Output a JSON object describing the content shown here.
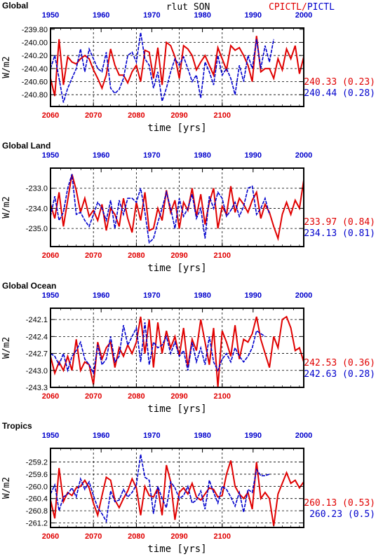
{
  "header": {
    "title": "rlut SON",
    "legend": "CPICTL/PICTL"
  },
  "colors": {
    "cpictl": "#e00000",
    "pictl": "#0000cc",
    "axis": "#000000",
    "grid": "#000000"
  },
  "chart_data": [
    {
      "type": "line",
      "panel_title": "Global",
      "ylabel": "W/m2",
      "xlabel": "time [yrs]",
      "xlim_bottom": [
        2060,
        2119
      ],
      "xticks_bottom": [
        2060,
        2070,
        2080,
        2090,
        2100
      ],
      "xlim_top": [
        1950,
        2000
      ],
      "xticks_top": [
        1950,
        1960,
        1970,
        1980,
        1990,
        2000
      ],
      "ylim": [
        -240.98,
        -239.78
      ],
      "yticks": [
        -239.8,
        -240.0,
        -240.2,
        -240.4,
        -240.6,
        -240.8
      ],
      "ytick_labels": [
        "-239.80",
        "-240.00",
        "-240.20",
        "-240.40",
        "-240.60",
        "-240.80"
      ],
      "grid_y": [
        -240.0,
        -240.2,
        -240.4,
        -240.6,
        -240.8
      ],
      "grid_x": [
        2070,
        2080,
        2090,
        2100
      ],
      "series": [
        {
          "name": "CPICTL",
          "mean_label": "240.33 (0.23)",
          "values": [
            -240.55,
            -240.82,
            -239.95,
            -240.65,
            -240.22,
            -240.3,
            -240.33,
            -240.25,
            -240.2,
            -240.25,
            -240.42,
            -240.55,
            -240.7,
            -240.5,
            -240.1,
            -240.35,
            -240.5,
            -240.5,
            -240.62,
            -240.45,
            -240.35,
            -240.6,
            -240.12,
            -240.15,
            -240.55,
            -240.08,
            -240.65,
            -240.0,
            -240.05,
            -240.22,
            -240.55,
            -240.05,
            -240.1,
            -240.2,
            -240.42,
            -240.3,
            -240.2,
            -240.35,
            -240.5,
            -240.08,
            -240.25,
            -240.42,
            -240.05,
            -240.12,
            -240.08,
            -240.2,
            -240.35,
            -240.6,
            -239.9,
            -240.45,
            -240.4,
            -240.4,
            -240.55,
            -240.25,
            -240.42,
            -240.1,
            -240.25,
            -240.05,
            -240.48,
            -240.22
          ]
        },
        {
          "name": "PICTL",
          "mean_label": "240.44 (0.28)",
          "values": [
            -240.4,
            -240.2,
            -240.55,
            -240.92,
            -240.7,
            -240.55,
            -240.4,
            -240.1,
            -240.45,
            -240.1,
            -240.25,
            -240.4,
            -240.45,
            -240.15,
            -240.7,
            -240.78,
            -240.72,
            -240.55,
            -240.2,
            -240.15,
            -240.3,
            -239.85,
            -240.25,
            -240.35,
            -240.7,
            -240.45,
            -240.9,
            -240.7,
            -240.45,
            -240.25,
            -240.35,
            -240.22,
            -240.4,
            -240.6,
            -240.5,
            -240.85,
            -240.3,
            -240.45,
            -240.65,
            -240.2,
            -240.5,
            -240.4,
            -240.55,
            -240.8,
            -240.35,
            -240.6,
            -240.2,
            -240.4,
            -239.95,
            -240.4,
            -240.05,
            -240.3,
            -239.95
          ]
        }
      ]
    },
    {
      "type": "line",
      "panel_title": "Global Land",
      "ylabel": "W/m2",
      "xlabel": "time [yrs]",
      "xlim_bottom": [
        2060,
        2119
      ],
      "xticks_bottom": [
        2060,
        2070,
        2080,
        2090,
        2100
      ],
      "xlim_top": [
        1950,
        2000
      ],
      "xticks_top": [
        1950,
        1960,
        1970,
        1980,
        1990,
        2000
      ],
      "ylim": [
        -235.9,
        -232.0
      ],
      "yticks": [
        -233.0,
        -234.0,
        -235.0
      ],
      "ytick_labels": [
        "-233.0",
        "-234.0",
        "-235.0"
      ],
      "grid_y": [
        -233.0,
        -234.0,
        -235.0
      ],
      "grid_x": [
        2070,
        2080,
        2090,
        2100
      ],
      "series": [
        {
          "name": "CPICTL",
          "mean_label": "233.97 (0.84)",
          "values": [
            -233.8,
            -234.5,
            -233.2,
            -234.9,
            -233.6,
            -232.3,
            -233.1,
            -234.2,
            -233.5,
            -234.4,
            -234.1,
            -234.6,
            -233.8,
            -235.1,
            -234.0,
            -234.3,
            -234.9,
            -233.5,
            -234.5,
            -235.2,
            -233.7,
            -234.6,
            -233.2,
            -235.1,
            -235.0,
            -234.0,
            -234.6,
            -233.1,
            -234.2,
            -233.6,
            -235.0,
            -233.7,
            -234.1,
            -233.0,
            -234.4,
            -233.3,
            -234.8,
            -233.7,
            -233.0,
            -235.0,
            -233.9,
            -234.3,
            -232.9,
            -234.2,
            -233.5,
            -233.8,
            -234.2,
            -233.6,
            -233.2,
            -234.5,
            -233.8,
            -234.2,
            -234.9,
            -235.5,
            -234.3,
            -233.7,
            -234.3,
            -233.6,
            -234.0,
            -232.6
          ]
        },
        {
          "name": "PICTL",
          "mean_label": "234.13 (0.81)",
          "values": [
            -234.4,
            -233.4,
            -234.6,
            -234.2,
            -233.0,
            -232.3,
            -234.3,
            -234.2,
            -234.6,
            -234.9,
            -234.3,
            -233.7,
            -234.0,
            -234.6,
            -233.6,
            -235.0,
            -233.6,
            -234.3,
            -233.5,
            -233.5,
            -233.7,
            -233.0,
            -234.2,
            -235.7,
            -235.5,
            -234.7,
            -234.0,
            -233.2,
            -234.0,
            -235.0,
            -233.5,
            -234.4,
            -234.0,
            -233.3,
            -234.5,
            -234.0,
            -235.5,
            -233.4,
            -234.0,
            -233.2,
            -233.5,
            -234.4,
            -234.1,
            -233.7,
            -234.4,
            -233.9,
            -233.0,
            -232.9,
            -234.3,
            -234.0,
            -233.5,
            -234.3
          ]
        }
      ]
    },
    {
      "type": "line",
      "panel_title": "Global Ocean",
      "ylabel": "W/m2",
      "xlabel": "time [yrs]",
      "xlim_bottom": [
        2060,
        2119
      ],
      "xticks_bottom": [
        2060,
        2070,
        2080,
        2090,
        2100
      ],
      "xlim_top": [
        1950,
        2000
      ],
      "xticks_top": [
        1950,
        1960,
        1970,
        1980,
        1990,
        2000
      ],
      "ylim": [
        -243.3,
        -241.9
      ],
      "yticks": [
        -242.1,
        -242.4,
        -242.7,
        -243.0,
        -243.3
      ],
      "ytick_labels": [
        "-242.1",
        "-242.4",
        "-242.7",
        "-243.0",
        "-243.3"
      ],
      "grid_y": [
        -242.1,
        -242.4,
        -242.7,
        -243.0
      ],
      "grid_x": [
        2070,
        2080,
        2090,
        2100
      ],
      "series": [
        {
          "name": "CPICTL",
          "mean_label": "242.53 (0.36)",
          "values": [
            -242.75,
            -243.05,
            -242.85,
            -243.0,
            -242.75,
            -243.0,
            -242.45,
            -243.0,
            -242.85,
            -242.9,
            -243.25,
            -242.5,
            -242.8,
            -242.6,
            -242.5,
            -242.95,
            -242.6,
            -242.75,
            -242.55,
            -242.7,
            -242.5,
            -242.05,
            -242.7,
            -242.1,
            -242.95,
            -242.15,
            -242.7,
            -242.3,
            -242.6,
            -242.4,
            -242.75,
            -242.25,
            -242.95,
            -242.45,
            -242.65,
            -242.1,
            -242.5,
            -242.9,
            -242.25,
            -243.3,
            -242.3,
            -242.5,
            -242.75,
            -242.2,
            -242.8,
            -242.45,
            -242.5,
            -242.35,
            -242.05,
            -242.45,
            -242.7,
            -242.95,
            -242.4,
            -242.6,
            -242.1,
            -242.05,
            -242.25,
            -242.65,
            -242.6,
            -242.85
          ]
        },
        {
          "name": "PICTL",
          "mean_label": "242.63 (0.28)",
          "values": [
            -242.7,
            -242.75,
            -242.9,
            -242.7,
            -243.0,
            -242.75,
            -242.65,
            -242.5,
            -242.8,
            -242.9,
            -243.05,
            -242.55,
            -242.9,
            -242.8,
            -242.4,
            -242.85,
            -242.75,
            -242.2,
            -242.55,
            -242.4,
            -242.25,
            -242.85,
            -242.15,
            -242.9,
            -242.5,
            -242.6,
            -242.55,
            -242.4,
            -242.7,
            -242.5,
            -242.75,
            -242.65,
            -243.0,
            -242.5,
            -242.85,
            -242.6,
            -242.9,
            -242.4,
            -242.85,
            -243.0,
            -242.8,
            -242.7,
            -242.85,
            -242.6,
            -242.75,
            -242.85,
            -242.75,
            -242.6,
            -242.3,
            -242.35,
            -242.4
          ]
        }
      ]
    },
    {
      "type": "line",
      "panel_title": "Tropics",
      "ylabel": "W/m2",
      "xlabel": "time [yrs]",
      "xlim_bottom": [
        2060,
        2119
      ],
      "xticks_bottom": [
        2060,
        2070,
        2080,
        2090,
        2100
      ],
      "xlim_top": [
        1950,
        2000
      ],
      "xticks_top": [
        1950,
        1960,
        1970,
        1980,
        1990,
        2000
      ],
      "ylim": [
        -261.35,
        -258.75
      ],
      "yticks": [
        -259.2,
        -259.6,
        -260.0,
        -260.4,
        -260.8,
        -261.2
      ],
      "ytick_labels": [
        "-259.2",
        "-259.6",
        "-260.0",
        "-260.4",
        "-260.8",
        "-261.2"
      ],
      "grid_y": [
        -259.2,
        -259.6,
        -260.0,
        -260.4,
        -260.8,
        -261.2
      ],
      "grid_x": [
        2070,
        2080,
        2090,
        2100
      ],
      "series": [
        {
          "name": "CPICTL",
          "mean_label": "260.13 (0.53)",
          "values": [
            -260.45,
            -261.05,
            -259.4,
            -260.5,
            -260.2,
            -260.3,
            -260.05,
            -260.0,
            -259.8,
            -260.05,
            -260.55,
            -260.95,
            -260.3,
            -259.7,
            -259.8,
            -260.45,
            -260.7,
            -260.4,
            -260.15,
            -259.75,
            -260.05,
            -260.95,
            -260.0,
            -260.3,
            -260.35,
            -260.05,
            -260.95,
            -259.3,
            -259.85,
            -261.1,
            -260.2,
            -260.05,
            -260.25,
            -259.9,
            -260.35,
            -260.45,
            -260.25,
            -260.05,
            -260.1,
            -260.35,
            -260.3,
            -259.6,
            -259.15,
            -260.0,
            -260.25,
            -260.4,
            -260.2,
            -260.75,
            -259.2,
            -260.4,
            -260.2,
            -260.4,
            -261.3,
            -260.25,
            -259.9,
            -259.55,
            -259.9,
            -259.8,
            -260.05,
            -259.85
          ]
        },
        {
          "name": "PICTL",
          "mean_label": "260.23 (0.5)",
          "values": [
            -260.25,
            -259.95,
            -260.8,
            -260.35,
            -260.25,
            -260.05,
            -260.35,
            -259.75,
            -260.1,
            -259.85,
            -260.3,
            -260.7,
            -260.9,
            -261.15,
            -260.15,
            -260.5,
            -260.45,
            -260.1,
            -260.35,
            -260.2,
            -259.95,
            -258.95,
            -259.7,
            -259.8,
            -260.9,
            -260.0,
            -260.4,
            -260.7,
            -259.85,
            -260.05,
            -260.4,
            -260.3,
            -260.0,
            -260.55,
            -260.45,
            -260.15,
            -260.75,
            -259.8,
            -260.2,
            -260.55,
            -260.0,
            -260.1,
            -260.35,
            -260.65,
            -260.2,
            -260.85,
            -260.1,
            -260.2,
            -259.45,
            -259.65,
            -259.65,
            -259.6
          ]
        }
      ]
    }
  ]
}
